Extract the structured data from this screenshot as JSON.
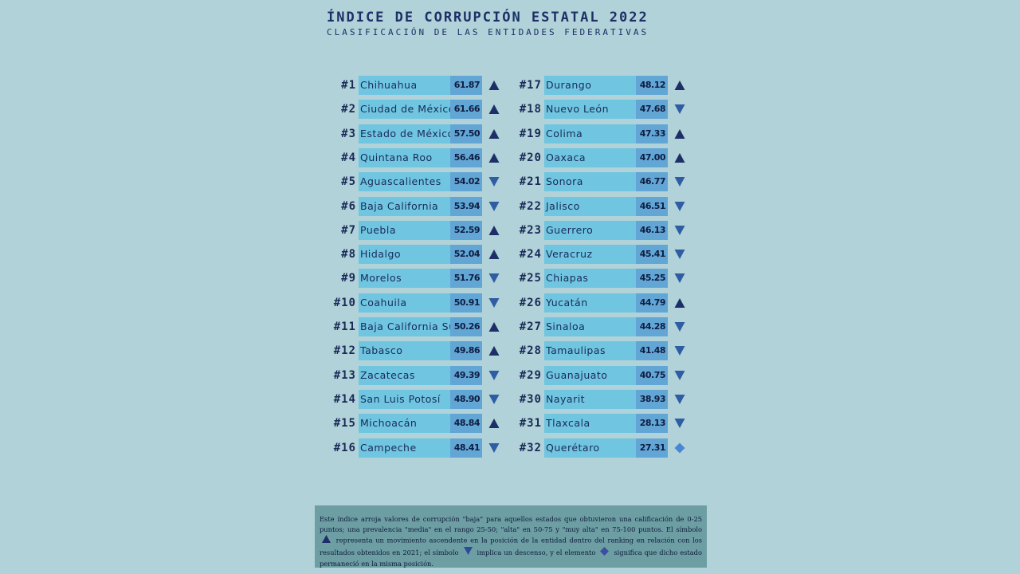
{
  "header": {
    "title": "ÍNDICE DE CORRUPCIÓN ESTATAL 2022",
    "subtitle": "CLASIFICACIÓN DE LAS ENTIDADES FEDERATIVAS"
  },
  "colors": {
    "background": "#b1d2d8",
    "bar": "#70c6e0",
    "score_box": "#62a6d6",
    "up": "#1d2f66",
    "down": "#2f5da3",
    "same": "#4a86d6",
    "note_background": "#6c9ea3"
  },
  "chart_data": {
    "type": "table",
    "title": "ÍNDICE DE CORRUPCIÓN ESTATAL 2022",
    "subtitle": "CLASIFICACIÓN DE LAS ENTIDADES FEDERATIVAS",
    "columns": [
      "rank",
      "state",
      "score",
      "trend"
    ],
    "rows": [
      {
        "rank": "#1",
        "state": "Chihuahua",
        "score": "61.87",
        "trend": "up"
      },
      {
        "rank": "#2",
        "state": "Ciudad de México",
        "score": "61.66",
        "trend": "up"
      },
      {
        "rank": "#3",
        "state": "Estado de México",
        "score": "57.50",
        "trend": "up"
      },
      {
        "rank": "#4",
        "state": "Quintana Roo",
        "score": "56.46",
        "trend": "up"
      },
      {
        "rank": "#5",
        "state": "Aguascalientes",
        "score": "54.02",
        "trend": "down"
      },
      {
        "rank": "#6",
        "state": "Baja California",
        "score": "53.94",
        "trend": "down"
      },
      {
        "rank": "#7",
        "state": "Puebla",
        "score": "52.59",
        "trend": "up"
      },
      {
        "rank": "#8",
        "state": "Hidalgo",
        "score": "52.04",
        "trend": "up"
      },
      {
        "rank": "#9",
        "state": "Morelos",
        "score": "51.76",
        "trend": "down"
      },
      {
        "rank": "#10",
        "state": "Coahuila",
        "score": "50.91",
        "trend": "down"
      },
      {
        "rank": "#11",
        "state": "Baja California Sur",
        "score": "50.26",
        "trend": "up"
      },
      {
        "rank": "#12",
        "state": "Tabasco",
        "score": "49.86",
        "trend": "up"
      },
      {
        "rank": "#13",
        "state": "Zacatecas",
        "score": "49.39",
        "trend": "down"
      },
      {
        "rank": "#14",
        "state": "San Luis Potosí",
        "score": "48.90",
        "trend": "down"
      },
      {
        "rank": "#15",
        "state": "Michoacán",
        "score": "48.84",
        "trend": "up"
      },
      {
        "rank": "#16",
        "state": "Campeche",
        "score": "48.41",
        "trend": "down"
      },
      {
        "rank": "#17",
        "state": "Durango",
        "score": "48.12",
        "trend": "up"
      },
      {
        "rank": "#18",
        "state": "Nuevo León",
        "score": "47.68",
        "trend": "down"
      },
      {
        "rank": "#19",
        "state": "Colima",
        "score": "47.33",
        "trend": "up"
      },
      {
        "rank": "#20",
        "state": "Oaxaca",
        "score": "47.00",
        "trend": "up"
      },
      {
        "rank": "#21",
        "state": "Sonora",
        "score": "46.77",
        "trend": "down"
      },
      {
        "rank": "#22",
        "state": "Jalisco",
        "score": "46.51",
        "trend": "down"
      },
      {
        "rank": "#23",
        "state": "Guerrero",
        "score": "46.13",
        "trend": "down"
      },
      {
        "rank": "#24",
        "state": "Veracruz",
        "score": "45.41",
        "trend": "down"
      },
      {
        "rank": "#25",
        "state": "Chiapas",
        "score": "45.25",
        "trend": "down"
      },
      {
        "rank": "#26",
        "state": "Yucatán",
        "score": "44.79",
        "trend": "up"
      },
      {
        "rank": "#27",
        "state": "Sinaloa",
        "score": "44.28",
        "trend": "down"
      },
      {
        "rank": "#28",
        "state": "Tamaulipas",
        "score": "41.48",
        "trend": "down"
      },
      {
        "rank": "#29",
        "state": "Guanajuato",
        "score": "40.75",
        "trend": "down"
      },
      {
        "rank": "#30",
        "state": "Nayarit",
        "score": "38.93",
        "trend": "down"
      },
      {
        "rank": "#31",
        "state": "Tlaxcala",
        "score": "28.13",
        "trend": "down"
      },
      {
        "rank": "#32",
        "state": "Querétaro",
        "score": "27.31",
        "trend": "same"
      }
    ]
  },
  "note": {
    "part1": "Este índice arroja valores de corrupción \"baja\" para aquellos estados que obtuvieron una calificación de 0-25 puntos; una prevalencia \"media\" en el rango 25-50; \"alta\" en 50-75 y \"muy alta\" en 75-100 puntos. El símbolo",
    "part2": "representa un movimiento ascendente en la posición de la entidad dentro del ranking en relación con los resultados obtenidos en 2021; el símbolo",
    "part3": "implica un descenso, y el elemento",
    "part4": "significa que dicho estado permaneció en la misma posición."
  }
}
